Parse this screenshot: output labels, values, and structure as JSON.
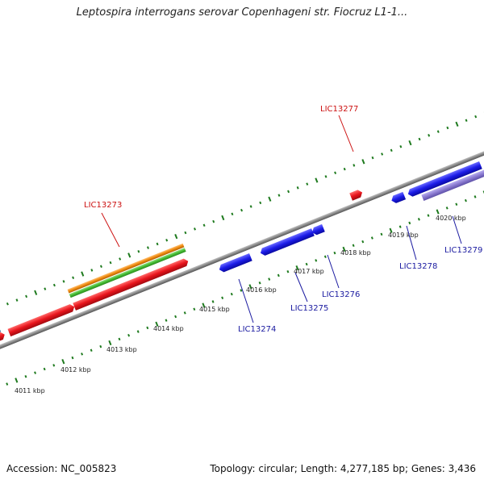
{
  "title": "Leptospira interrogans serovar Copenhageni str. Fiocruz L1-1...",
  "footer": {
    "accession": "Accession: NC_005823",
    "topology": "Topology: circular; Length: 4,277,185 bp; Genes: 3,436"
  },
  "colors": {
    "backbone": "#8a8a8a",
    "ticks": "#1e7a1e",
    "cds_forward": "#e8141c",
    "cds_reverse": "#1c1ce8",
    "rna": "#8a7ad0",
    "orange_feature": "#f08a10",
    "green_feature": "#44bb33",
    "steelblue_feature": "#4a7fb0",
    "label_red": "#cc1111",
    "label_blue": "#1a1aa0"
  },
  "kbp_labels": [
    "4011 kbp",
    "4012 kbp",
    "4013 kbp",
    "4014 kbp",
    "4015 kbp",
    "4016 kbp",
    "4017 kbp",
    "4018 kbp",
    "4019 kbp",
    "4020 kbp"
  ],
  "gene_labels": [
    {
      "text": "LIC13273",
      "strand": "forward"
    },
    {
      "text": "LIC13277",
      "strand": "forward"
    },
    {
      "text": "LIC13274",
      "strand": "reverse"
    },
    {
      "text": "LIC13275",
      "strand": "reverse"
    },
    {
      "text": "LIC13276",
      "strand": "reverse"
    },
    {
      "text": "LIC13278",
      "strand": "reverse"
    },
    {
      "text": "LIC13279",
      "strand": "reverse"
    }
  ]
}
